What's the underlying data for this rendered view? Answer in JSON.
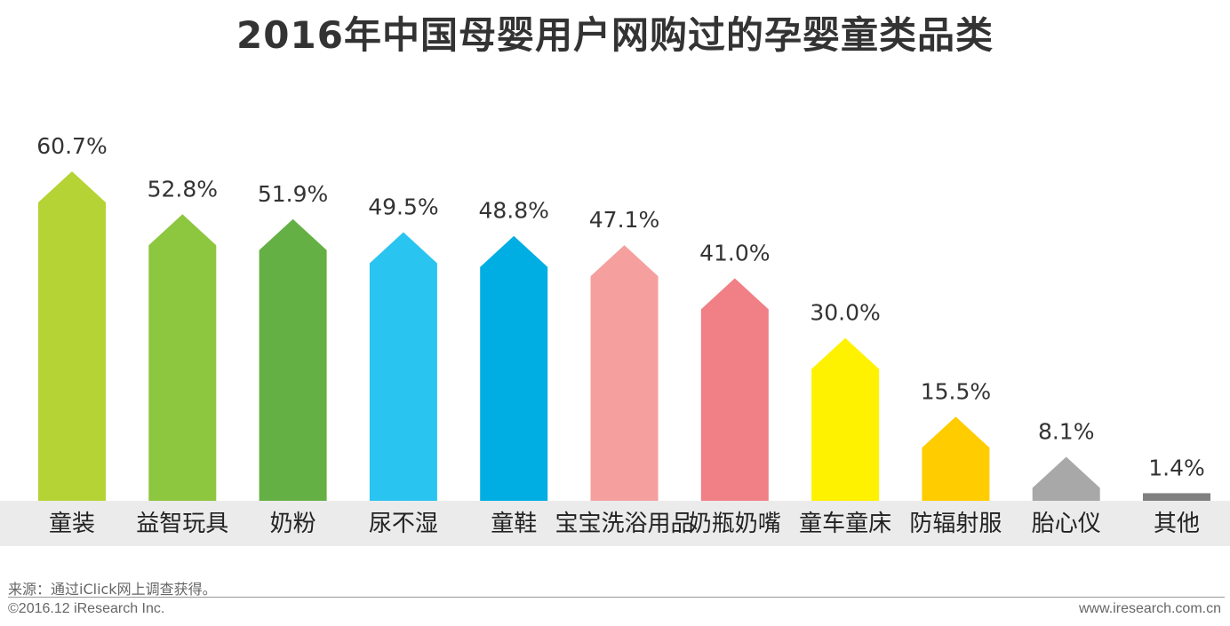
{
  "chart_data": {
    "type": "bar",
    "title": "2016年中国母婴用户网购过的孕婴童类品类",
    "categories": [
      "童装",
      "益智玩具",
      "奶粉",
      "尿不湿",
      "童鞋",
      "宝宝洗浴用品",
      "奶瓶奶嘴",
      "童车童床",
      "防辐射服",
      "胎心仪",
      "其他"
    ],
    "values": [
      60.7,
      52.8,
      51.9,
      49.5,
      48.8,
      47.1,
      41.0,
      30.0,
      15.5,
      8.1,
      1.4
    ],
    "value_labels": [
      "60.7%",
      "52.8%",
      "51.9%",
      "49.5%",
      "48.8%",
      "47.1%",
      "41.0%",
      "30.0%",
      "15.5%",
      "8.1%",
      "1.4%"
    ],
    "colors": [
      "#b5d334",
      "#8dc63f",
      "#64b044",
      "#29c4f0",
      "#00aee3",
      "#f59f9e",
      "#f07f86",
      "#fff200",
      "#ffcc00",
      "#a8a8a8",
      "#808080"
    ],
    "unit": "%",
    "category_band_color": "#ebebeb"
  },
  "footer": {
    "source": "来源：通过iClick网上调查获得。",
    "copyright": "©2016.12 iResearch Inc.",
    "url": "www.iresearch.com.cn"
  }
}
